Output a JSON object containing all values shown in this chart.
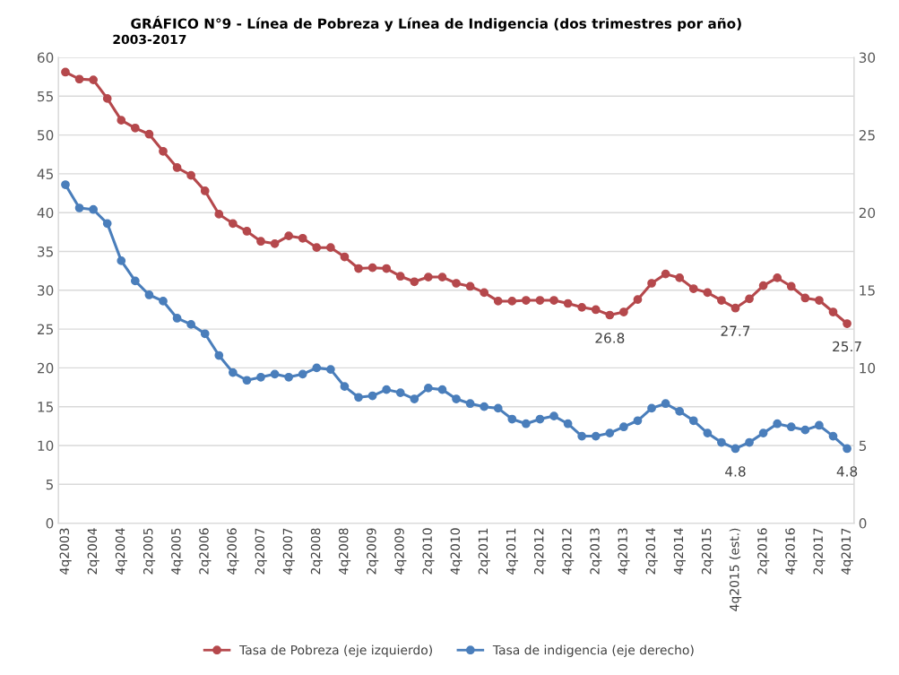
{
  "chart_data": {
    "type": "line",
    "title": "GRÁFICO N°9 - Línea de Pobreza y Línea de Indigencia (dos trimestres por año)",
    "subtitle": "2003-2017",
    "categories": [
      "4q2003",
      null,
      "2q2004",
      null,
      "4q2004",
      null,
      "2q2005",
      null,
      "4q2005",
      null,
      "2q2006",
      null,
      "4q2006",
      null,
      "2q2007",
      null,
      "4q2007",
      null,
      "2q2008",
      null,
      "4q2008",
      null,
      "2q2009",
      null,
      "4q2009",
      null,
      "2q2010",
      null,
      "4q2010",
      null,
      "2q2011",
      null,
      "4q2011",
      null,
      "2q2012",
      null,
      "4q2012",
      null,
      "2q2013",
      null,
      "4q2013",
      null,
      "2q2014",
      null,
      "4q2014",
      null,
      "2q2015",
      null,
      "4q2015 (est.)",
      null,
      "2q2016",
      null,
      "4q2016",
      null,
      "2q2017",
      null,
      "4q2017"
    ],
    "series": [
      {
        "name": "Tasa de Pobreza (eje izquierdo)",
        "color": "#b5484c",
        "values": [
          58.1,
          57.2,
          57.1,
          54.7,
          51.9,
          50.9,
          50.1,
          47.9,
          45.8,
          44.8,
          42.8,
          39.8,
          38.6,
          37.6,
          36.3,
          36.0,
          37.0,
          36.7,
          35.5,
          35.5,
          34.3,
          32.8,
          32.9,
          32.8,
          31.8,
          31.1,
          31.7,
          31.7,
          30.9,
          30.5,
          29.7,
          28.6,
          28.6,
          28.7,
          28.7,
          28.7,
          28.3,
          27.8,
          27.5,
          26.8,
          27.2,
          28.8,
          30.9,
          32.1,
          31.6,
          30.2,
          29.7,
          28.7,
          27.7,
          28.9,
          30.6,
          31.6,
          30.5,
          29.0,
          28.7,
          27.2,
          25.7
        ],
        "value_labels": [
          null,
          null,
          null,
          null,
          null,
          null,
          null,
          null,
          null,
          null,
          null,
          null,
          null,
          null,
          null,
          null,
          null,
          null,
          null,
          null,
          null,
          null,
          null,
          null,
          null,
          null,
          null,
          null,
          null,
          null,
          null,
          null,
          null,
          null,
          null,
          null,
          null,
          null,
          null,
          "26.8",
          null,
          null,
          null,
          null,
          null,
          null,
          null,
          null,
          "27.7",
          null,
          null,
          null,
          null,
          null,
          null,
          null,
          "25.7"
        ]
      },
      {
        "name": "Tasa de indigencia (eje derecho)",
        "color": "#4a7ebb",
        "axis": "y2",
        "values": [
          21.8,
          20.3,
          20.2,
          19.3,
          16.9,
          15.6,
          14.7,
          14.3,
          13.2,
          12.8,
          12.2,
          10.8,
          9.7,
          9.2,
          9.4,
          9.6,
          9.4,
          9.6,
          10.0,
          9.9,
          8.8,
          8.1,
          8.2,
          8.6,
          8.4,
          8.0,
          8.7,
          8.6,
          8.0,
          7.7,
          7.5,
          7.4,
          6.7,
          6.4,
          6.7,
          6.9,
          6.4,
          5.6,
          5.6,
          5.8,
          6.2,
          6.6,
          7.4,
          7.7,
          7.2,
          6.6,
          5.8,
          5.2,
          4.8,
          5.2,
          5.8,
          6.4,
          6.2,
          6.0,
          6.3,
          5.6,
          4.8
        ],
        "value_labels": [
          null,
          null,
          null,
          null,
          null,
          null,
          null,
          null,
          null,
          null,
          null,
          null,
          null,
          null,
          null,
          null,
          null,
          null,
          null,
          null,
          null,
          null,
          null,
          null,
          null,
          null,
          null,
          null,
          null,
          null,
          null,
          null,
          null,
          null,
          null,
          null,
          null,
          null,
          null,
          null,
          null,
          null,
          null,
          null,
          null,
          null,
          null,
          null,
          "4.8",
          null,
          null,
          null,
          null,
          null,
          null,
          null,
          "4.8"
        ]
      }
    ],
    "ylim": [
      0,
      60
    ],
    "yticks": [
      0,
      5,
      10,
      15,
      20,
      25,
      30,
      35,
      40,
      45,
      50,
      55,
      60
    ],
    "y2lim": [
      0,
      30
    ],
    "y2ticks": [
      0,
      5,
      10,
      15,
      20,
      25,
      30
    ],
    "grid": "y",
    "legend": "bottom",
    "marker": "circle",
    "line_style": "solid"
  }
}
